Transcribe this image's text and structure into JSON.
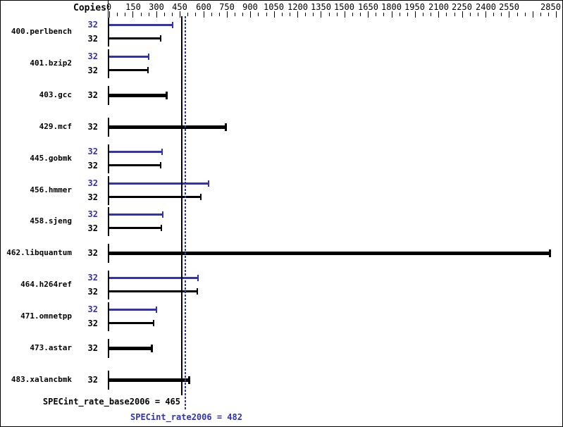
{
  "header": {
    "copies_label": "Copies"
  },
  "chart_data": {
    "type": "bar",
    "orientation": "horizontal",
    "title": "",
    "x_axis": {
      "min": 0,
      "max": 2850,
      "minor_step": 50,
      "major_step": 150,
      "tick_labels": [
        0,
        150,
        300,
        450,
        600,
        750,
        900,
        1050,
        1200,
        1350,
        1500,
        1650,
        1800,
        1950,
        2100,
        2250,
        2400,
        2550,
        2850
      ]
    },
    "benchmarks": [
      {
        "name": "400.perlbench",
        "peak": {
          "copies": "32",
          "score": 407
        },
        "base": {
          "copies": "32",
          "score": 333
        }
      },
      {
        "name": "401.bzip2",
        "peak": {
          "copies": "32",
          "score": 258
        },
        "base": {
          "copies": "32",
          "score": 252
        }
      },
      {
        "name": "403.gcc",
        "single": {
          "copies": "32",
          "score": 375
        }
      },
      {
        "name": "429.mcf",
        "single": {
          "copies": "32",
          "score": 752
        }
      },
      {
        "name": "445.gobmk",
        "peak": {
          "copies": "32",
          "score": 342
        },
        "base": {
          "copies": "32",
          "score": 334
        }
      },
      {
        "name": "456.hmmer",
        "peak": {
          "copies": "32",
          "score": 639
        },
        "base": {
          "copies": "32",
          "score": 590
        }
      },
      {
        "name": "458.sjeng",
        "peak": {
          "copies": "32",
          "score": 346
        },
        "base": {
          "copies": "32",
          "score": 335
        }
      },
      {
        "name": "462.libquantum",
        "single": {
          "copies": "32",
          "score": 2820
        }
      },
      {
        "name": "464.h264ref",
        "peak": {
          "copies": "32",
          "score": 569
        },
        "base": {
          "copies": "32",
          "score": 565
        }
      },
      {
        "name": "471.omnetpp",
        "peak": {
          "copies": "32",
          "score": 307
        },
        "base": {
          "copies": "32",
          "score": 288
        }
      },
      {
        "name": "473.astar",
        "single": {
          "copies": "32",
          "score": 279
        }
      },
      {
        "name": "483.xalancbmk",
        "single": {
          "copies": "32",
          "score": 516
        }
      }
    ],
    "summary": {
      "base_text": "SPECint_rate_base2006 = 465",
      "base_value": 465,
      "peak_text": "SPECint_rate2006 = 482",
      "peak_value": 482
    }
  },
  "colors": {
    "peak_blue": "#3232b4",
    "base_black": "#000000",
    "background": "#ffffff"
  }
}
